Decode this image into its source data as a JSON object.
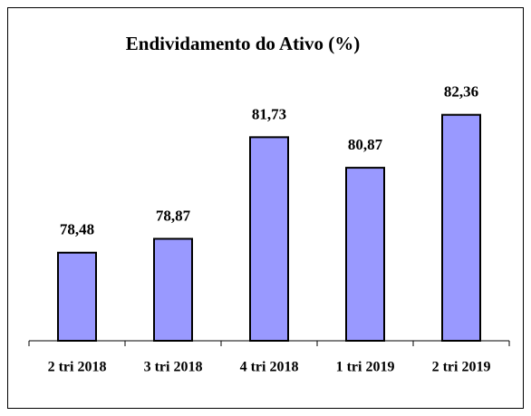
{
  "chart_data": {
    "type": "bar",
    "title": "Endividamento do Ativo (%)",
    "categories": [
      "2 tri 2018",
      "3 tri 2018",
      "4 tri 2018",
      "1 tri 2019",
      "2 tri 2019"
    ],
    "values": [
      78.48,
      78.87,
      81.73,
      80.87,
      82.36
    ],
    "value_labels": [
      "78,48",
      "78,87",
      "81,73",
      "80,87",
      "82,36"
    ],
    "color": "#9999ff",
    "ylim": [
      76,
      84
    ]
  }
}
